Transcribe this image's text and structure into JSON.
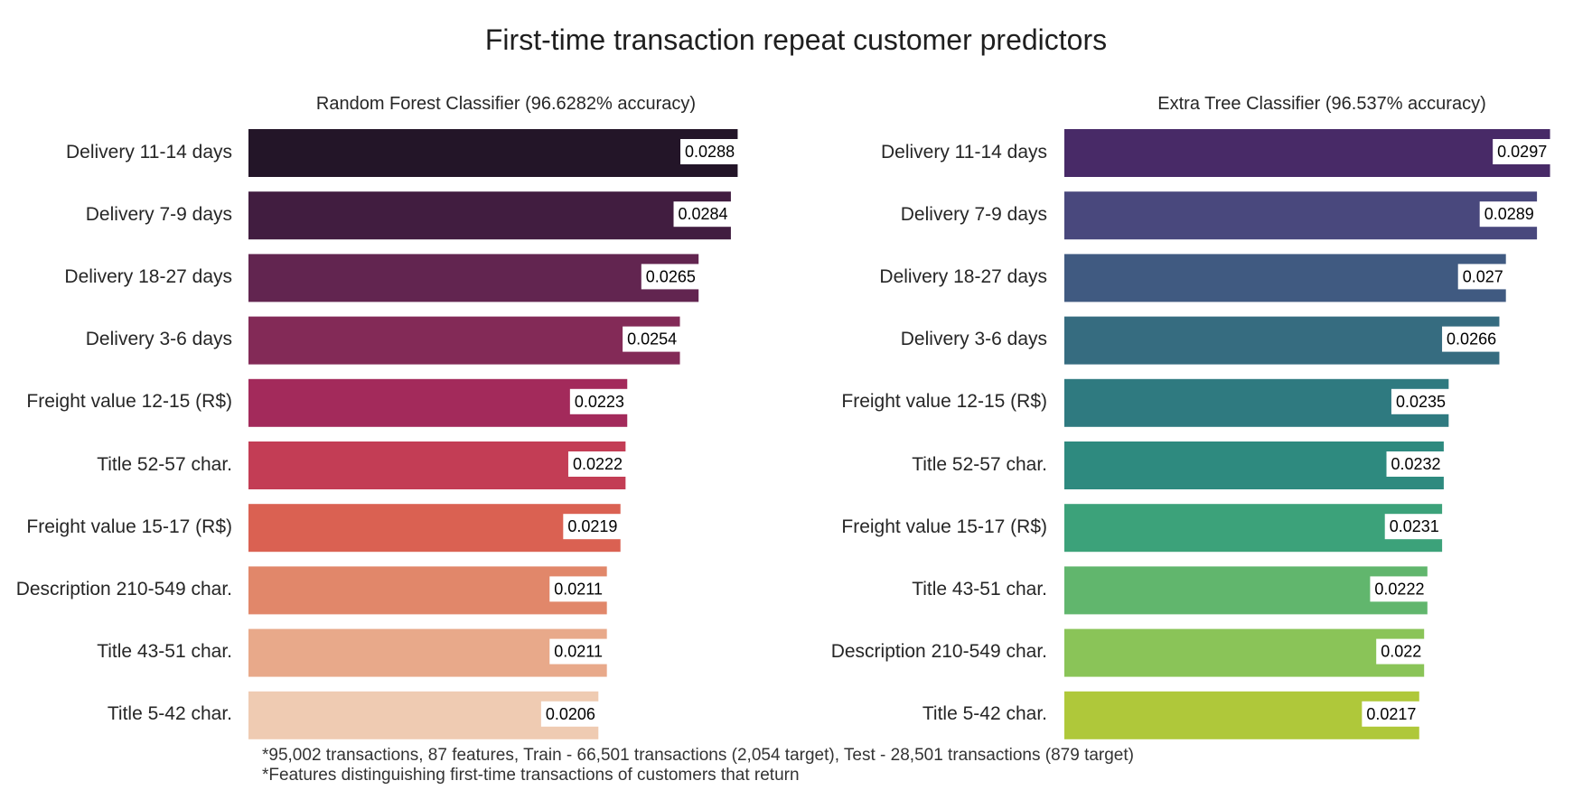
{
  "title": "First-time transaction repeat customer predictors",
  "footnotes": [
    "*95,002 transactions, 87 features, Train - 66,501 transactions (2,054 target), Test - 28,501 transactions (879 target)",
    "*Features distinguishing first-time transactions of customers that return"
  ],
  "chart_data": [
    {
      "type": "bar",
      "orientation": "horizontal",
      "title": "Random Forest Classifier (96.6282% accuracy)",
      "xlabel": "",
      "ylabel": "",
      "grid": false,
      "categories": [
        "Delivery 11-14 days",
        "Delivery 7-9 days",
        "Delivery 18-27 days",
        "Delivery 3-6 days",
        "Freight value 12-15 (R$)",
        "Title 52-57 char.",
        "Freight value 15-17 (R$)",
        "Description 210-549 char.",
        "Title 43-51 char.",
        "Title 5-42 char."
      ],
      "values": [
        0.0288,
        0.0284,
        0.0265,
        0.0254,
        0.0223,
        0.0222,
        0.0219,
        0.0211,
        0.0211,
        0.0206
      ],
      "value_labels": [
        "0.0288",
        "0.0284",
        "0.0265",
        "0.0254",
        "0.0223",
        "0.0222",
        "0.0219",
        "0.0211",
        "0.0211",
        "0.0206"
      ],
      "colors": [
        "#231528",
        "#411d40",
        "#622550",
        "#832a57",
        "#a32a5b",
        "#c33d55",
        "#da6152",
        "#e1876a",
        "#e8a98a",
        "#efcbb2"
      ]
    },
    {
      "type": "bar",
      "orientation": "horizontal",
      "title": "Extra Tree Classifier (96.537% accuracy)",
      "xlabel": "",
      "ylabel": "",
      "grid": false,
      "categories": [
        "Delivery 11-14 days",
        "Delivery 7-9 days",
        "Delivery 18-27 days",
        "Delivery 3-6 days",
        "Freight value 12-15 (R$)",
        "Title 52-57 char.",
        "Freight value 15-17 (R$)",
        "Title 43-51 char.",
        "Description 210-549 char.",
        "Title 5-42 char."
      ],
      "values": [
        0.0297,
        0.0289,
        0.027,
        0.0266,
        0.0235,
        0.0232,
        0.0231,
        0.0222,
        0.022,
        0.0217
      ],
      "value_labels": [
        "0.0297",
        "0.0289",
        "0.027",
        "0.0266",
        "0.0235",
        "0.0232",
        "0.0231",
        "0.0222",
        "0.022",
        "0.0217"
      ],
      "colors": [
        "#482a67",
        "#49487d",
        "#405a81",
        "#366c80",
        "#2f7a80",
        "#2e8a7f",
        "#3ca27a",
        "#61b66d",
        "#8ac458",
        "#afc83a"
      ]
    }
  ]
}
